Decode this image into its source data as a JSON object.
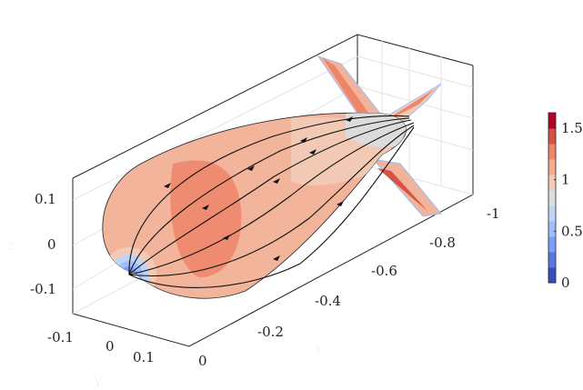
{
  "chart_data": {
    "type": "surface",
    "xlabel": "x",
    "ylabel": "y",
    "zlabel": "z",
    "x_ticks": [
      "0",
      "-0.2",
      "-0.4",
      "-0.6",
      "-0.8",
      "-1"
    ],
    "y_ticks": [
      "-0.1",
      "0",
      "0.1"
    ],
    "z_ticks": [
      "0.1",
      "0",
      "-0.1"
    ],
    "colorbar": {
      "ticks": [
        "0",
        "0.5",
        "1",
        "1.5"
      ],
      "range": [
        0,
        1.65
      ],
      "colormap": "coolwarm",
      "levels": [
        "#3a4cc0",
        "#5977e3",
        "#7b9ff9",
        "#9ebeff",
        "#c0d4f5",
        "#dddcdc",
        "#f2cbb7",
        "#f7ac8e",
        "#ee8468",
        "#d65244",
        "#b40426"
      ]
    },
    "grid": true,
    "streamlines": true
  }
}
